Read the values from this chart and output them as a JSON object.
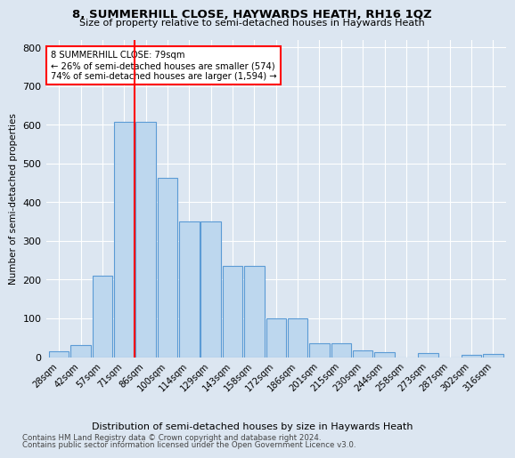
{
  "title": "8, SUMMERHILL CLOSE, HAYWARDS HEATH, RH16 1QZ",
  "subtitle": "Size of property relative to semi-detached houses in Haywards Heath",
  "xlabel_bottom": "Distribution of semi-detached houses by size in Haywards Heath",
  "ylabel": "Number of semi-detached properties",
  "categories": [
    "28sqm",
    "42sqm",
    "57sqm",
    "71sqm",
    "86sqm",
    "100sqm",
    "114sqm",
    "129sqm",
    "143sqm",
    "158sqm",
    "172sqm",
    "186sqm",
    "201sqm",
    "215sqm",
    "230sqm",
    "244sqm",
    "258sqm",
    "273sqm",
    "287sqm",
    "302sqm",
    "316sqm"
  ],
  "values": [
    14,
    32,
    210,
    607,
    607,
    462,
    350,
    350,
    235,
    235,
    100,
    100,
    35,
    35,
    17,
    12,
    0,
    10,
    0,
    5,
    8
  ],
  "bar_color": "#bdd7ee",
  "bar_edge_color": "#5b9bd5",
  "bg_color": "#dce6f1",
  "grid_color": "#ffffff",
  "pct_smaller": 26,
  "pct_larger": 74,
  "n_smaller": 574,
  "n_larger": 1594,
  "vline_x": 3.5,
  "footer1": "Contains HM Land Registry data © Crown copyright and database right 2024.",
  "footer2": "Contains public sector information licensed under the Open Government Licence v3.0.",
  "ylim": [
    0,
    820
  ],
  "yticks": [
    0,
    100,
    200,
    300,
    400,
    500,
    600,
    700,
    800
  ]
}
